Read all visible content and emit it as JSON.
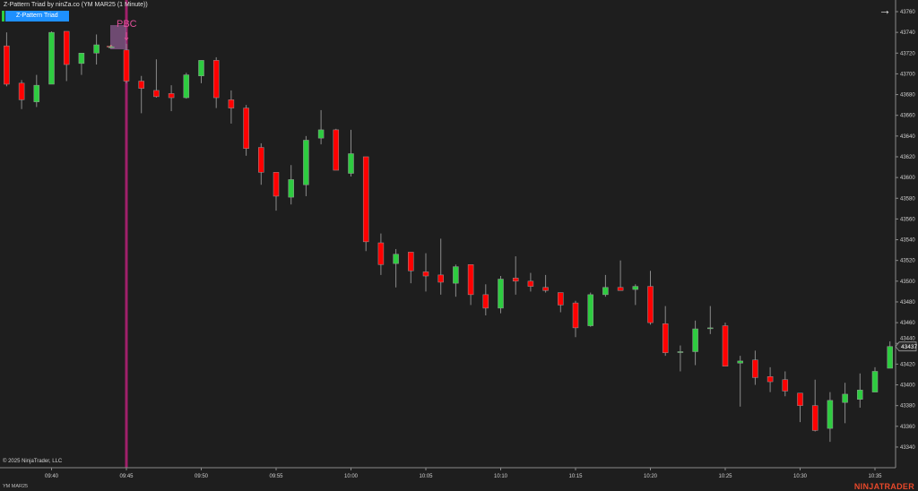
{
  "header": {
    "title": "Z-Pattern Triad by ninZa.co (YM MAR25 (1 Minute))",
    "indicator_button": "Z-Pattern Triad",
    "nav_icon": "arrow-right-icon"
  },
  "footer": {
    "copyright": "© 2025 NinjaTrader, LLC",
    "instrument": "YM MAR25",
    "logo": "NINJATRADER"
  },
  "colors": {
    "up": "#2ecc40",
    "down": "#ff0000",
    "background": "#1e1e1e",
    "signal_line": "#a0206a",
    "signal_text": "#e0509a",
    "box": "#8a5a8e"
  },
  "chart_data": {
    "type": "candlestick",
    "x_ticks": [
      "09:40",
      "09:45",
      "09:50",
      "09:55",
      "10:00",
      "10:05",
      "10:10",
      "10:15",
      "10:20",
      "10:25",
      "10:30",
      "10:35"
    ],
    "y_ticks": [
      43340,
      43360,
      43380,
      43400,
      43420,
      43440,
      43460,
      43480,
      43500,
      43520,
      43540,
      43560,
      43580,
      43600,
      43620,
      43640,
      43660,
      43680,
      43700,
      43720,
      43740,
      43760
    ],
    "ylim": [
      43336,
      43770
    ],
    "last_price": "43437",
    "signal": {
      "label": "PBC",
      "time": "09:45"
    },
    "candle_fields": [
      "time",
      "open",
      "high",
      "low",
      "close"
    ],
    "candles": [
      [
        "09:37",
        43727,
        43740,
        43688,
        43690
      ],
      [
        "09:38",
        43691,
        43694,
        43666,
        43675
      ],
      [
        "09:39",
        43673,
        43699,
        43668,
        43689
      ],
      [
        "09:40",
        43690,
        43741,
        43690,
        43740
      ],
      [
        "09:41",
        43741,
        43741,
        43693,
        43709
      ],
      [
        "09:42",
        43710,
        43720,
        43699,
        43720
      ],
      [
        "09:43",
        43720,
        43738,
        43709,
        43728
      ],
      [
        "09:44",
        43726,
        43728,
        43725,
        43726
      ],
      [
        "09:45",
        43723,
        43729,
        43691,
        43693
      ],
      [
        "09:46",
        43693,
        43698,
        43662,
        43686
      ],
      [
        "09:47",
        43684,
        43714,
        43677,
        43678
      ],
      [
        "09:48",
        43681,
        43689,
        43664,
        43677
      ],
      [
        "09:49",
        43677,
        43701,
        43676,
        43699
      ],
      [
        "09:50",
        43698,
        43713,
        43691,
        43713
      ],
      [
        "09:51",
        43713,
        43716,
        43667,
        43677
      ],
      [
        "09:52",
        43675,
        43684,
        43652,
        43667
      ],
      [
        "09:53",
        43667,
        43670,
        43621,
        43628
      ],
      [
        "09:54",
        43629,
        43633,
        43593,
        43605
      ],
      [
        "09:55",
        43605,
        43605,
        43568,
        43582
      ],
      [
        "09:56",
        43581,
        43612,
        43574,
        43598
      ],
      [
        "09:57",
        43593,
        43640,
        43582,
        43636
      ],
      [
        "09:58",
        43638,
        43665,
        43632,
        43646
      ],
      [
        "09:59",
        43646,
        43647,
        43607,
        43607
      ],
      [
        "10:00",
        43604,
        43646,
        43601,
        43623
      ],
      [
        "10:01",
        43620,
        43620,
        43529,
        43538
      ],
      [
        "10:02",
        43537,
        43546,
        43506,
        43516
      ],
      [
        "10:03",
        43517,
        43531,
        43494,
        43526
      ],
      [
        "10:04",
        43528,
        43528,
        43498,
        43510
      ],
      [
        "10:05",
        43509,
        43527,
        43490,
        43505
      ],
      [
        "10:06",
        43506,
        43541,
        43487,
        43499
      ],
      [
        "10:07",
        43498,
        43516,
        43485,
        43514
      ],
      [
        "10:08",
        43516,
        43516,
        43477,
        43487
      ],
      [
        "10:09",
        43487,
        43497,
        43467,
        43474
      ],
      [
        "10:10",
        43474,
        43505,
        43469,
        43502
      ],
      [
        "10:11",
        43503,
        43524,
        43487,
        43500
      ],
      [
        "10:12",
        43500,
        43508,
        43490,
        43495
      ],
      [
        "10:13",
        43494,
        43506,
        43489,
        43491
      ],
      [
        "10:14",
        43489,
        43489,
        43470,
        43477
      ],
      [
        "10:15",
        43479,
        43481,
        43446,
        43455
      ],
      [
        "10:16",
        43457,
        43489,
        43456,
        43487
      ],
      [
        "10:17",
        43487,
        43506,
        43485,
        43494
      ],
      [
        "10:18",
        43494,
        43520,
        43491,
        43491
      ],
      [
        "10:19",
        43492,
        43497,
        43477,
        43495
      ],
      [
        "10:20",
        43495,
        43510,
        43458,
        43460
      ],
      [
        "10:21",
        43459,
        43476,
        43428,
        43431
      ],
      [
        "10:22",
        43432,
        43438,
        43413,
        43432
      ],
      [
        "10:23",
        43432,
        43462,
        43419,
        43454
      ],
      [
        "10:24",
        43455,
        43476,
        43449,
        43455
      ],
      [
        "10:25",
        43457,
        43460,
        43418,
        43418
      ],
      [
        "10:26",
        43421,
        43428,
        43379,
        43423
      ],
      [
        "10:27",
        43424,
        43433,
        43400,
        43407
      ],
      [
        "10:28",
        43408,
        43417,
        43393,
        43403
      ],
      [
        "10:29",
        43405,
        43413,
        43389,
        43394
      ],
      [
        "10:30",
        43392,
        43392,
        43364,
        43380
      ],
      [
        "10:31",
        43380,
        43405,
        43355,
        43356
      ],
      [
        "10:32",
        43358,
        43393,
        43345,
        43385
      ],
      [
        "10:33",
        43383,
        43402,
        43363,
        43391
      ],
      [
        "10:34",
        43386,
        43411,
        43378,
        43395
      ],
      [
        "10:35",
        43393,
        43417,
        43393,
        43413
      ],
      [
        "10:36",
        43416,
        43442,
        43416,
        43437
      ]
    ]
  }
}
